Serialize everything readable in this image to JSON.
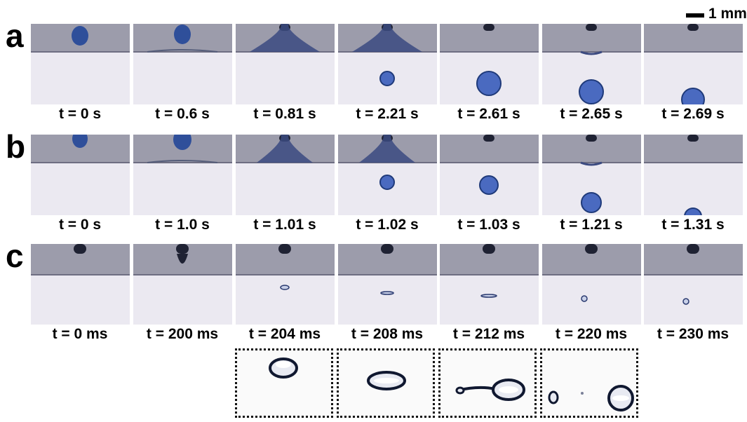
{
  "scale_bar": {
    "label": "1 mm"
  },
  "rows": [
    {
      "letter": "a",
      "labels": [
        "t = 0 s",
        "t = 0.6 s",
        "t = 0.81 s",
        "t = 2.21 s",
        "t = 2.61 s",
        "t = 2.65 s",
        "t = 2.69 s"
      ]
    },
    {
      "letter": "b",
      "labels": [
        "t = 0 s",
        "t = 1.0 s",
        "t = 1.01 s",
        "t = 1.02 s",
        "t = 1.03 s",
        "t = 1.21 s",
        "t = 1.31 s"
      ]
    },
    {
      "letter": "c",
      "labels": [
        "t = 0 ms",
        "t = 200 ms",
        "t = 204 ms",
        "t = 208 ms",
        "t = 212 ms",
        "t = 220 ms",
        "t = 230 ms"
      ]
    }
  ],
  "colors": {
    "upper_phase": "#9c9cab",
    "lower_phase": "#ebe9f1",
    "drop": "#2f4f9a",
    "nozzle": "#1f2233"
  }
}
